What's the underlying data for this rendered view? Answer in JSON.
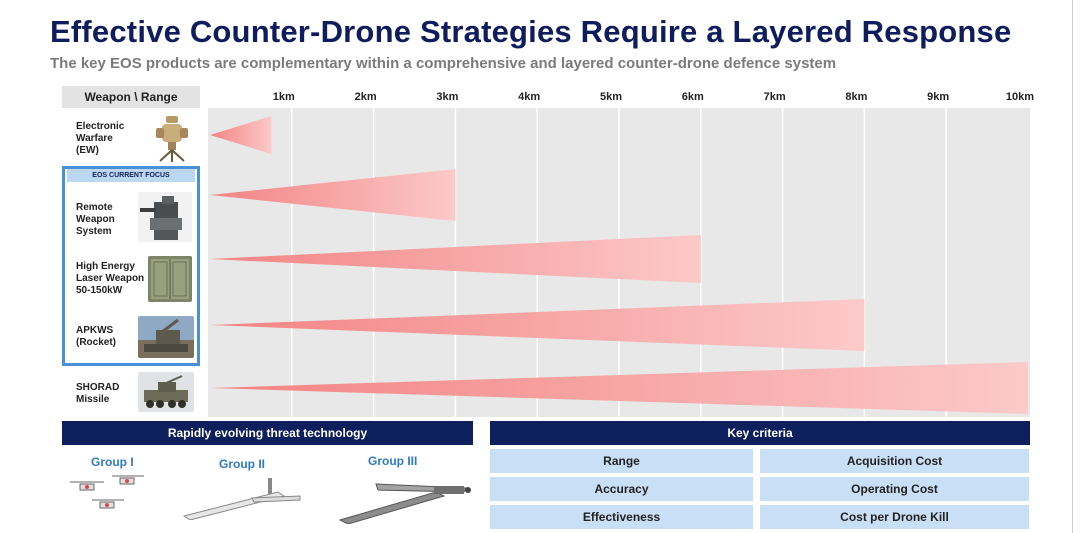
{
  "title": "Effective Counter-Drone Strategies Require a Layered Response",
  "subtitle": "The key EOS products are complementary within a comprehensive and layered counter-drone defence system",
  "header_cell": "Weapon \\ Range",
  "focus_label": "EOS CURRENT FOCUS",
  "chart_data": {
    "type": "bar",
    "title": "Effective Counter-Drone Strategies Require a Layered Response",
    "xlabel": "Range",
    "xlim": [
      0,
      10
    ],
    "x_unit": "km",
    "tick_labels": [
      "1km",
      "2km",
      "3km",
      "4km",
      "5km",
      "6km",
      "7km",
      "8km",
      "9km",
      "10km"
    ],
    "grid": true,
    "categories": [
      {
        "lines": [
          "Electronic",
          "Warfare",
          "(EW)"
        ],
        "range_km": 0.75
      },
      {
        "lines": [
          "Remote",
          "Weapon",
          "System"
        ],
        "range_km": 3.0
      },
      {
        "lines": [
          "High Energy",
          "Laser Weapon",
          "50-150kW"
        ],
        "range_km": 6.0
      },
      {
        "lines": [
          "APKWS",
          "(Rocket)"
        ],
        "range_km": 8.0
      },
      {
        "lines": [
          "SHORAD",
          "Missile"
        ],
        "range_km": 10.0
      }
    ],
    "bar_color": "#f47e7e"
  },
  "threat": {
    "header": "Rapidly evolving threat technology",
    "groups": [
      "Group I",
      "Group II",
      "Group III"
    ]
  },
  "criteria": {
    "header": "Key criteria",
    "items": [
      "Range",
      "Acquisition Cost",
      "Accuracy",
      "Operating Cost",
      "Effectiveness",
      "Cost per Drone Kill"
    ]
  }
}
